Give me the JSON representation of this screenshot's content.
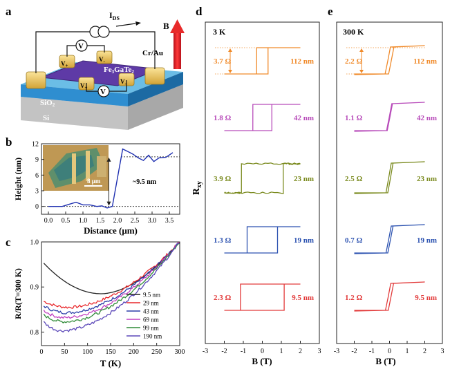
{
  "panel_labels": {
    "a": "a",
    "b": "b",
    "c": "c",
    "d": "d",
    "e": "e"
  },
  "panel_a": {
    "current_label_main": "I",
    "current_label_sub": "DS",
    "field_label": "B",
    "contact_label": "Cr/Au",
    "material_main": "Fe",
    "material_sub1": "3",
    "material_mid": "GaTe",
    "material_sub2": "2",
    "oxide_main": "SiO",
    "oxide_sub": "2",
    "substrate": "Si",
    "voltmeter": "V",
    "probe_plus": "V",
    "probe_plus_sign": "+",
    "probe_minus": "V",
    "probe_minus_sign": "-"
  },
  "chart_data": [
    {
      "id": "b",
      "type": "line",
      "xlabel": "Distance (μm)",
      "ylabel": "Height (nm)",
      "xlim": [
        -0.2,
        3.8
      ],
      "ylim": [
        -1.5,
        12
      ],
      "xticks": [
        "0.0",
        "0.5",
        "1.0",
        "1.5",
        "2.0",
        "2.5",
        "3.0",
        "3.5"
      ],
      "yticks": [
        "0",
        "3",
        "6",
        "9",
        "12"
      ],
      "x": [
        0.0,
        0.2,
        0.4,
        0.6,
        0.8,
        1.0,
        1.2,
        1.4,
        1.55,
        1.7,
        1.85,
        2.0,
        2.15,
        2.3,
        2.45,
        2.6,
        2.75,
        2.9,
        3.05,
        3.2,
        3.4,
        3.6
      ],
      "y": [
        0,
        0,
        0,
        0.4,
        0.8,
        0.3,
        0.3,
        0,
        0.1,
        -0.3,
        0,
        5.5,
        11,
        10.5,
        10,
        9.3,
        8.8,
        9.8,
        8.6,
        9.3,
        9.4,
        10.3
      ],
      "inset_scale": "8 μm",
      "annotation": "~9.5 nm",
      "baseline_y": 0,
      "plateau_y": 9.5
    },
    {
      "id": "c",
      "type": "line",
      "xlabel": "T (K)",
      "ylabel": "R/R(T=300 K)",
      "xlim": [
        0,
        300
      ],
      "ylim": [
        0.77,
        1.0
      ],
      "xticks": [
        "0",
        "50",
        "100",
        "150",
        "200",
        "250",
        "300"
      ],
      "yticks": [
        "0.8",
        "0.9",
        "1.0"
      ],
      "series": [
        {
          "name": "9.5 nm",
          "color": "#222222",
          "min_T": 130,
          "min_R": 0.885,
          "start_R": 0.953
        },
        {
          "name": "29 nm",
          "color": "#e8262a",
          "min_T": 60,
          "min_R": 0.855,
          "start_R": 0.868
        },
        {
          "name": "43 nm",
          "color": "#2a3da8",
          "min_T": 55,
          "min_R": 0.843,
          "start_R": 0.858
        },
        {
          "name": "69 nm",
          "color": "#c03fc0",
          "min_T": 50,
          "min_R": 0.832,
          "start_R": 0.848
        },
        {
          "name": "99 nm",
          "color": "#2e8a36",
          "min_T": 50,
          "min_R": 0.823,
          "start_R": 0.838
        },
        {
          "name": "190 nm",
          "color": "#5a46b8",
          "min_T": 45,
          "min_R": 0.803,
          "start_R": 0.822
        }
      ]
    },
    {
      "id": "d",
      "type": "line",
      "temperature": "3 K",
      "ylabel_main": "R",
      "ylabel_sub": "xy",
      "xlabel": "B (T)",
      "xlim": [
        -3,
        3
      ],
      "xticks": [
        "-3",
        "-2",
        "-1",
        "0",
        "1",
        "2",
        "3"
      ],
      "loops": [
        {
          "thickness": "112 nm",
          "delta": "3.7 Ω",
          "color": "#f08a2a",
          "coercive": 0.3,
          "sharp": true,
          "noise": 0
        },
        {
          "thickness": "42 nm",
          "delta": "1.8 Ω",
          "color": "#b84cba",
          "coercive": 0.5,
          "sharp": true,
          "noise": 0
        },
        {
          "thickness": "23 nm",
          "delta": "3.9 Ω",
          "color": "#7a8a1e",
          "coercive": 1.1,
          "sharp": true,
          "noise": 1
        },
        {
          "thickness": "19 nm",
          "delta": "1.3 Ω",
          "color": "#2c52b0",
          "coercive": 0.8,
          "sharp": true,
          "noise": 0
        },
        {
          "thickness": "9.5 nm",
          "delta": "2.3 Ω",
          "color": "#e23a3a",
          "coercive": 1.15,
          "sharp": true,
          "noise": 0
        }
      ]
    },
    {
      "id": "e",
      "type": "line",
      "temperature": "300 K",
      "xlabel": "B (T)",
      "xlim": [
        -3,
        3
      ],
      "xticks": [
        "-3",
        "-2",
        "-1",
        "0",
        "1",
        "2",
        "3"
      ],
      "loops": [
        {
          "thickness": "112 nm",
          "delta": "2.2 Ω",
          "color": "#f08a2a",
          "coercive": 0.1,
          "sharp": false,
          "noise": 0
        },
        {
          "thickness": "42 nm",
          "delta": "1.1 Ω",
          "color": "#b84cba",
          "coercive": 0.02,
          "sharp": false,
          "noise": 0
        },
        {
          "thickness": "23 nm",
          "delta": "2.5 Ω",
          "color": "#7a8a1e",
          "coercive": 0.05,
          "sharp": false,
          "noise": 1
        },
        {
          "thickness": "19 nm",
          "delta": "0.7 Ω",
          "color": "#2c52b0",
          "coercive": 0.05,
          "sharp": false,
          "noise": 0
        },
        {
          "thickness": "9.5 nm",
          "delta": "1.2 Ω",
          "color": "#e23a3a",
          "coercive": 0.08,
          "sharp": false,
          "noise": 0
        }
      ]
    }
  ]
}
